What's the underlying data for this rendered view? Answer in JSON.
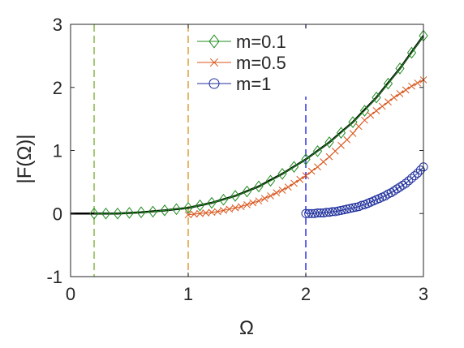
{
  "chart_data": {
    "type": "line",
    "title": "",
    "xlabel": "Ω",
    "ylabel": "|F(Ω)|",
    "xlim": [
      0,
      3
    ],
    "ylim": [
      -1,
      3
    ],
    "xticks": [
      0,
      1,
      2,
      3
    ],
    "yticks": [
      -1,
      0,
      1,
      2,
      3
    ],
    "grid": false,
    "legend_position": "top",
    "vlines": [
      {
        "x": 0.2,
        "color": "#77AC30"
      },
      {
        "x": 1.0,
        "color": "#D9921B"
      },
      {
        "x": 2.0,
        "color": "#1414E0"
      }
    ],
    "reference_curve": {
      "color": "#000000",
      "x": [
        0.0,
        0.2,
        0.4,
        0.6,
        0.8,
        1.0,
        1.2,
        1.4,
        1.6,
        1.8,
        2.0,
        2.2,
        2.4,
        2.6,
        2.8,
        3.0
      ],
      "y": [
        0.0,
        0.0,
        0.0,
        0.02,
        0.05,
        0.09,
        0.17,
        0.28,
        0.43,
        0.63,
        0.86,
        1.13,
        1.45,
        1.84,
        2.3,
        2.82
      ]
    },
    "series": [
      {
        "name": "m=0.1",
        "color": "#1E8C1E",
        "marker": "diamond",
        "x": [
          0.2,
          0.3,
          0.4,
          0.5,
          0.6,
          0.7,
          0.8,
          0.9,
          1.0,
          1.1,
          1.2,
          1.3,
          1.4,
          1.5,
          1.6,
          1.7,
          1.8,
          1.9,
          2.0,
          2.1,
          2.2,
          2.3,
          2.4,
          2.5,
          2.6,
          2.7,
          2.8,
          2.9,
          3.0
        ],
        "y": [
          0.0,
          0.0,
          0.0,
          0.01,
          0.02,
          0.03,
          0.05,
          0.07,
          0.09,
          0.13,
          0.17,
          0.22,
          0.28,
          0.35,
          0.43,
          0.52,
          0.63,
          0.74,
          0.86,
          0.99,
          1.13,
          1.28,
          1.45,
          1.63,
          1.84,
          2.06,
          2.3,
          2.55,
          2.82
        ]
      },
      {
        "name": "m=0.5",
        "color": "#D95319",
        "marker": "x",
        "x": [
          1.0,
          1.05,
          1.1,
          1.15,
          1.2,
          1.25,
          1.3,
          1.35,
          1.4,
          1.45,
          1.5,
          1.55,
          1.6,
          1.65,
          1.7,
          1.75,
          1.8,
          1.85,
          1.9,
          1.95,
          2.0,
          2.05,
          2.1,
          2.15,
          2.2,
          2.25,
          2.3,
          2.35,
          2.4,
          2.45,
          2.5,
          2.55,
          2.6,
          2.65,
          2.7,
          2.75,
          2.8,
          2.85,
          2.9,
          2.95,
          3.0
        ],
        "y": [
          -0.02,
          -0.01,
          0.0,
          0.01,
          0.02,
          0.03,
          0.05,
          0.07,
          0.09,
          0.11,
          0.14,
          0.17,
          0.2,
          0.24,
          0.28,
          0.33,
          0.37,
          0.42,
          0.48,
          0.54,
          0.6,
          0.67,
          0.74,
          0.82,
          0.9,
          0.99,
          1.08,
          1.17,
          1.27,
          1.38,
          1.48,
          1.56,
          1.63,
          1.7,
          1.77,
          1.84,
          1.9,
          1.96,
          2.02,
          2.07,
          2.12
        ]
      },
      {
        "name": "m=1",
        "color": "#1F2F9C",
        "marker": "circle",
        "x": [
          2.0,
          2.025,
          2.05,
          2.075,
          2.1,
          2.125,
          2.15,
          2.175,
          2.2,
          2.225,
          2.25,
          2.275,
          2.3,
          2.325,
          2.35,
          2.375,
          2.4,
          2.425,
          2.45,
          2.475,
          2.5,
          2.525,
          2.55,
          2.575,
          2.6,
          2.625,
          2.65,
          2.675,
          2.7,
          2.725,
          2.75,
          2.775,
          2.8,
          2.825,
          2.85,
          2.875,
          2.9,
          2.925,
          2.95,
          2.975,
          3.0
        ],
        "y": [
          0.0,
          0.0,
          0.0,
          0.0,
          0.01,
          0.01,
          0.01,
          0.02,
          0.02,
          0.03,
          0.03,
          0.04,
          0.05,
          0.06,
          0.07,
          0.08,
          0.09,
          0.1,
          0.11,
          0.13,
          0.14,
          0.16,
          0.18,
          0.2,
          0.22,
          0.24,
          0.26,
          0.28,
          0.31,
          0.33,
          0.36,
          0.39,
          0.42,
          0.45,
          0.48,
          0.52,
          0.56,
          0.6,
          0.64,
          0.69,
          0.74
        ]
      }
    ]
  }
}
